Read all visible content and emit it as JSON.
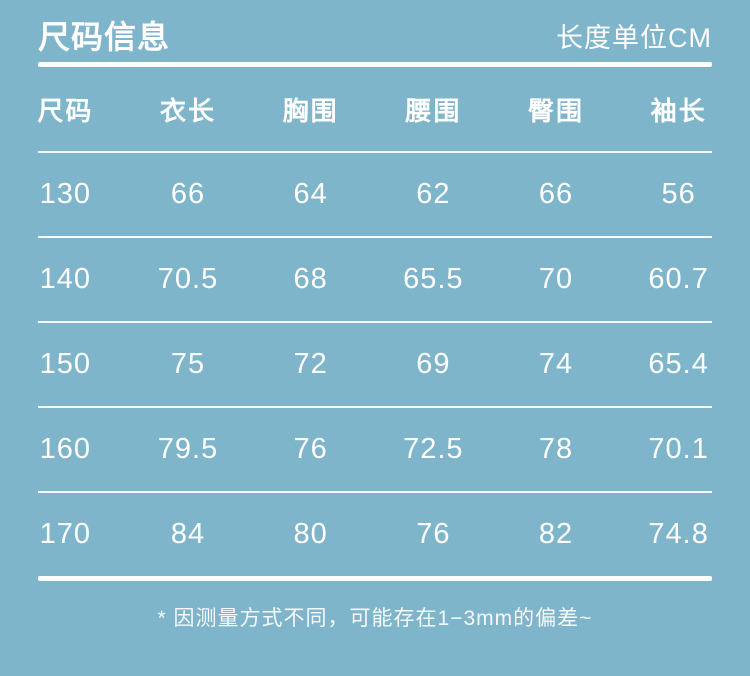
{
  "colors": {
    "background": "#7fb5cb",
    "text": "#ffffff",
    "rule": "#ffffff"
  },
  "header": {
    "title": "尺码信息",
    "unit_label": "长度单位CM"
  },
  "table": {
    "columns": [
      "尺码",
      "衣长",
      "胸围",
      "腰围",
      "臀围",
      "袖长"
    ],
    "rows": [
      [
        "130",
        "66",
        "64",
        "62",
        "66",
        "56"
      ],
      [
        "140",
        "70.5",
        "68",
        "65.5",
        "70",
        "60.7"
      ],
      [
        "150",
        "75",
        "72",
        "69",
        "74",
        "65.4"
      ],
      [
        "160",
        "79.5",
        "76",
        "72.5",
        "78",
        "70.1"
      ],
      [
        "170",
        "84",
        "80",
        "76",
        "82",
        "74.8"
      ]
    ]
  },
  "footer": {
    "note": "* 因测量方式不同，可能存在1−3mm的偏差~"
  }
}
